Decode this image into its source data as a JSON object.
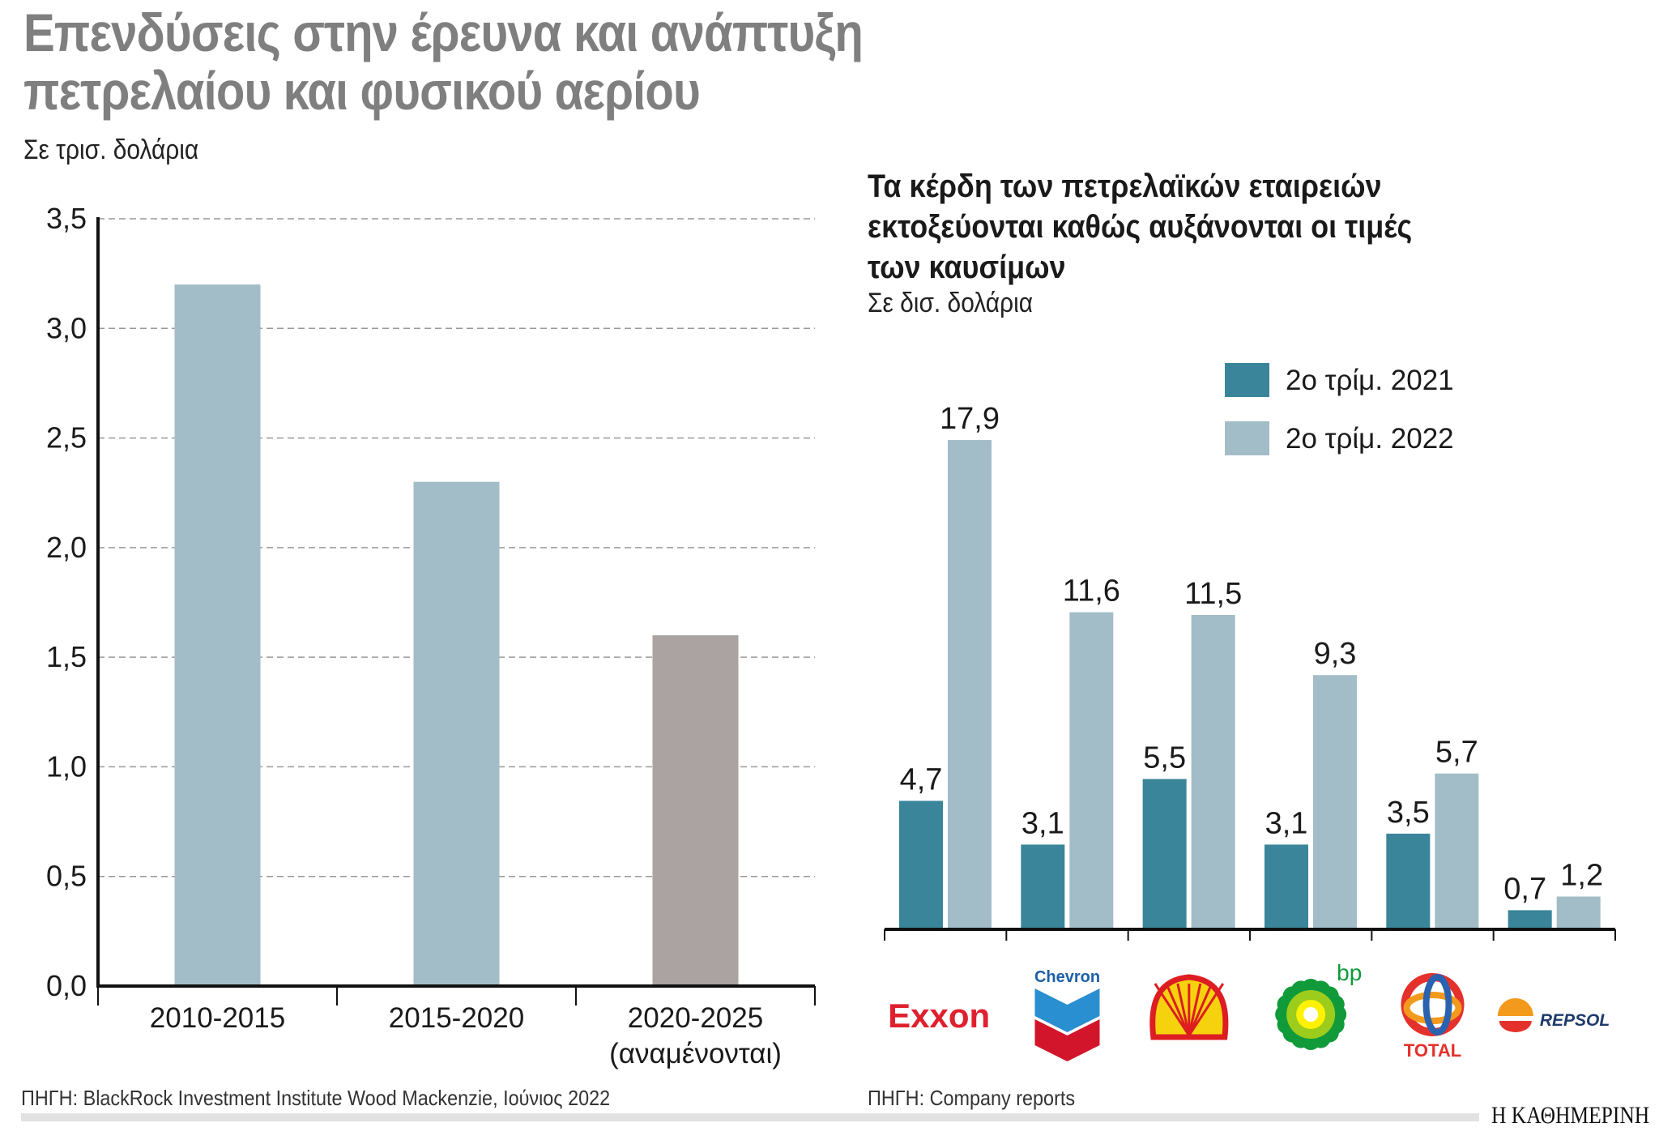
{
  "left_title_line1": "Επενδύσεις στην έρευνα και ανάπτυξη",
  "left_title_line2": "πετρελαίου και φυσικού αερίου",
  "left_unit": "Σε τρισ. δολάρια",
  "right_title_line1": "Τα κέρδη των πετρελαϊκών εταιρειών",
  "right_title_line2": "εκτοξεύονται καθώς αυξάνονται οι τιμές",
  "right_title_line3": "των καυσίμων",
  "right_unit": "Σε δισ. δολάρια",
  "left_source": "ΠΗΓΗ: BlackRock Investment Institute Wood Mackenzie, Ιούνιος 2022",
  "right_source": "ΠΗΓΗ: Company reports",
  "publisher": "Η ΚΑΘΗΜΕΡΙΝΗ",
  "chart_data": [
    {
      "type": "bar",
      "categories": [
        "2010-2015",
        "2015-2020",
        "2020-2025"
      ],
      "category_sublabels": [
        "",
        "",
        "(αναμένονται)"
      ],
      "values": [
        3.2,
        2.3,
        1.6
      ],
      "colors": [
        "#a3bdc8",
        "#a3bdc8",
        "#aaa3a1"
      ],
      "ylim": [
        0,
        3.5
      ],
      "yticks": [
        "0,0",
        "0,5",
        "1,0",
        "1,5",
        "2,0",
        "2,5",
        "3,0",
        "3,5"
      ],
      "grid": true,
      "ylabel": "Σε τρισ. δολάρια"
    },
    {
      "type": "bar",
      "categories": [
        "Exxon",
        "Chevron",
        "Shell",
        "bp",
        "Total",
        "Repsol"
      ],
      "series": [
        {
          "name": "2ο τρίμ. 2021",
          "color": "#3a8599",
          "values": [
            4.7,
            3.1,
            5.5,
            3.1,
            3.5,
            0.7
          ],
          "labels": [
            "4,7",
            "3,1",
            "5,5",
            "3,1",
            "3,5",
            "0,7"
          ]
        },
        {
          "name": "2ο τρίμ. 2022",
          "color": "#a3bdc8",
          "values": [
            17.9,
            11.6,
            11.5,
            9.3,
            5.7,
            1.2
          ],
          "labels": [
            "17,9",
            "11,6",
            "11,5",
            "9,3",
            "5,7",
            "1,2"
          ]
        }
      ],
      "ylim": [
        0,
        17.9
      ],
      "legend": "top-right",
      "grid": false,
      "category_display": "logos"
    }
  ]
}
